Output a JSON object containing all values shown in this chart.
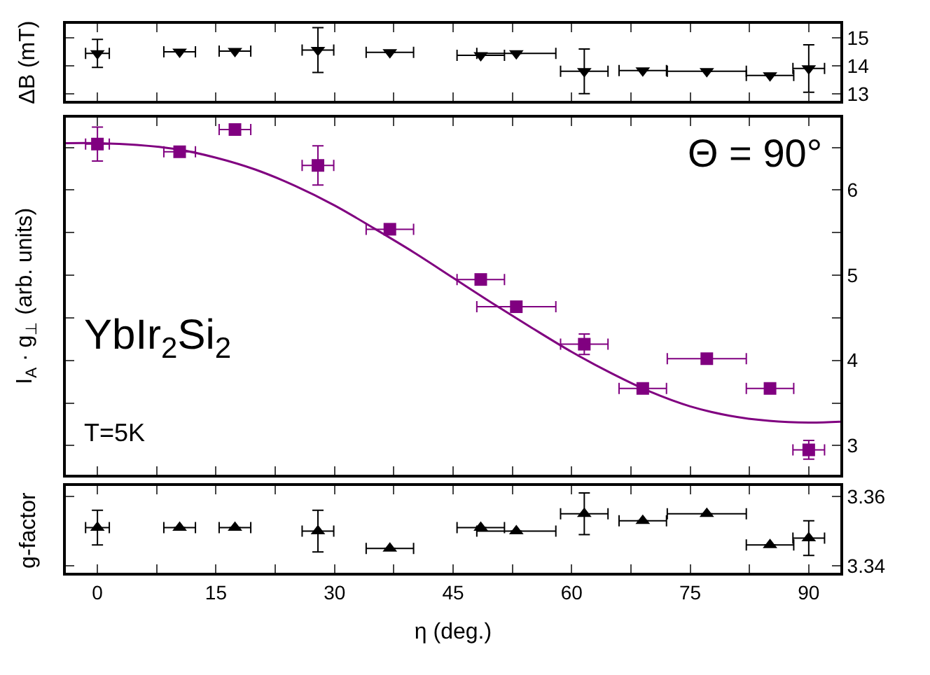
{
  "chart_data": [
    {
      "type": "scatter",
      "ylabel": "ΔB (mT)",
      "tick_labels": "y",
      "marker": "triangle-down",
      "xlim": [
        -4,
        94
      ],
      "xticks": [
        0,
        {
          "value": 7.5,
          "label": null
        },
        15,
        {
          "value": 22.5,
          "label": null
        },
        30,
        {
          "value": 37.5,
          "label": null
        },
        45,
        {
          "value": 52.5,
          "label": null
        },
        60,
        {
          "value": 67.5,
          "label": null
        },
        75,
        {
          "value": 82.5,
          "label": null
        },
        90
      ],
      "ylim": [
        12.75,
        15.5
      ],
      "yticks": [
        13,
        14,
        15
      ],
      "x": [
        0,
        10.4,
        17.4,
        27.9,
        37,
        48.5,
        53,
        61.6,
        69,
        77.1,
        85.1,
        90
      ],
      "series": [
        {
          "color": "#000000",
          "values": [
            14.44,
            14.5,
            14.52,
            14.56,
            14.48,
            14.37,
            14.44,
            13.8,
            13.83,
            13.8,
            13.65,
            13.9
          ],
          "errors": [
            0.5,
            null,
            null,
            0.8,
            null,
            null,
            null,
            0.8,
            null,
            null,
            null,
            0.85
          ],
          "xerrors": [
            1.5,
            2,
            2,
            2,
            3,
            3,
            5,
            3,
            3,
            5,
            3,
            2
          ]
        }
      ]
    },
    {
      "type": "scatter",
      "ylabel": "I$_{A}$ · g$_{⊥}$ (arb. units)",
      "tick_labels": "y",
      "marker": "square",
      "xlim": [
        -4,
        94
      ],
      "xticks": [
        0,
        {
          "value": 7.5,
          "label": null
        },
        15,
        {
          "value": 22.5,
          "label": null
        },
        30,
        {
          "value": 37.5,
          "label": null
        },
        45,
        {
          "value": 52.5,
          "label": null
        },
        60,
        {
          "value": 67.5,
          "label": null
        },
        75,
        {
          "value": 82.5,
          "label": null
        },
        90
      ],
      "ylim": [
        2.66,
        6.85
      ],
      "yticks": [
        3,
        {
          "value": 3.5,
          "label": null
        },
        4,
        {
          "value": 4.5,
          "label": null
        },
        5,
        {
          "value": 5.5,
          "label": null
        },
        6,
        {
          "value": 6.5,
          "label": null
        }
      ],
      "annotations": [
        "Θ = 90°",
        "YbIr$_{2}$Si$_{2}$",
        "T=5K"
      ],
      "x": [
        0,
        10.4,
        17.4,
        27.9,
        37,
        48.5,
        53,
        61.6,
        69,
        77.1,
        85.1,
        90
      ],
      "series": [
        {
          "color": "#800080",
          "values": [
            6.54,
            6.45,
            6.71,
            6.29,
            5.54,
            4.95,
            4.63,
            4.19,
            3.67,
            4.02,
            3.67,
            2.95
          ],
          "errors": [
            0.2,
            null,
            null,
            0.23,
            null,
            null,
            null,
            0.12,
            null,
            null,
            null,
            0.11
          ],
          "xerrors": [
            1.5,
            2,
            2,
            2,
            3,
            3,
            5,
            3,
            3,
            5,
            3,
            2
          ]
        },
        {
          "type": "line",
          "marker": "none",
          "color": "#800080",
          "x": [
            -4,
            0,
            5,
            10,
            15,
            20,
            25,
            30,
            35,
            40,
            45,
            50,
            55,
            60,
            65,
            70,
            75,
            80,
            85,
            90,
            94
          ],
          "values": [
            6.55,
            6.55,
            6.53,
            6.48,
            6.38,
            6.24,
            6.05,
            5.82,
            5.55,
            5.27,
            4.97,
            4.67,
            4.38,
            4.1,
            3.85,
            3.63,
            3.46,
            3.35,
            3.29,
            3.27,
            3.28
          ]
        }
      ]
    },
    {
      "type": "scatter",
      "ylabel": "g-factor",
      "xlabel": "η (deg.)",
      "marker": "triangle",
      "xlim": [
        -4,
        94
      ],
      "xticks": [
        0,
        {
          "value": 7.5,
          "label": null
        },
        15,
        {
          "value": 22.5,
          "label": null
        },
        30,
        {
          "value": 37.5,
          "label": null
        },
        45,
        {
          "value": 52.5,
          "label": null
        },
        60,
        {
          "value": 67.5,
          "label": null
        },
        75,
        {
          "value": 82.5,
          "label": null
        },
        90
      ],
      "ylim": [
        3.338,
        3.363
      ],
      "yticks": [
        3.34,
        3.36
      ],
      "x": [
        0,
        10.4,
        17.4,
        27.9,
        37,
        48.5,
        53,
        61.6,
        69,
        77.1,
        85.1,
        90
      ],
      "series": [
        {
          "color": "#000000",
          "values": [
            3.351,
            3.351,
            3.351,
            3.35,
            3.345,
            3.351,
            3.35,
            3.355,
            3.353,
            3.355,
            3.346,
            3.348
          ],
          "errors": [
            0.005,
            null,
            null,
            0.006,
            null,
            null,
            null,
            0.006,
            null,
            null,
            null,
            0.005
          ],
          "xerrors": [
            1.5,
            2,
            2,
            2,
            3,
            3,
            5,
            3,
            3,
            5,
            3,
            2
          ]
        }
      ]
    }
  ]
}
